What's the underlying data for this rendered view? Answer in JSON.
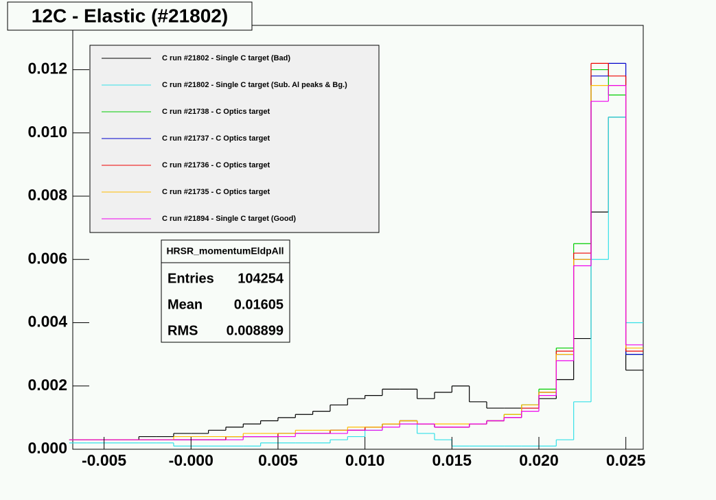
{
  "chart_data": {
    "type": "histogram",
    "title": "12C - Elastic (#21802)",
    "bins": [
      -0.007,
      -0.006,
      -0.005,
      -0.004,
      -0.003,
      -0.002,
      -0.001,
      0.0,
      0.001,
      0.002,
      0.003,
      0.004,
      0.005,
      0.006,
      0.007,
      0.008,
      0.009,
      0.01,
      0.011,
      0.012,
      0.013,
      0.014,
      0.015,
      0.016,
      0.017,
      0.018,
      0.019,
      0.02,
      0.021,
      0.022,
      0.023,
      0.024,
      0.025,
      0.026
    ],
    "series": [
      {
        "name": "C run #21802 - Single C target (Bad)",
        "color": "#000000",
        "values": [
          0.0003,
          0.0003,
          0.0003,
          0.0003,
          0.0004,
          0.0004,
          0.0005,
          0.0005,
          0.0006,
          0.0007,
          0.0008,
          0.0009,
          0.001,
          0.0011,
          0.0012,
          0.0014,
          0.0016,
          0.0017,
          0.0019,
          0.0019,
          0.0016,
          0.0018,
          0.002,
          0.0015,
          0.0013,
          0.0013,
          0.0014,
          0.0016,
          0.0022,
          0.0035,
          0.0075,
          0.0105,
          0.0025
        ]
      },
      {
        "name": "C run #21802 - Single C target (Sub. Al peaks & Bg.)",
        "color": "#33e0e8",
        "values": [
          0.0002,
          0.0002,
          0.0002,
          0.0002,
          0.0002,
          0.0002,
          0.0001,
          0.0001,
          0.0001,
          0.0001,
          0.0001,
          0.0002,
          0.0002,
          0.0002,
          0.0002,
          0.0003,
          0.0004,
          0.0006,
          0.0008,
          0.0008,
          0.0005,
          0.0003,
          0.0001,
          0.0001,
          0.0001,
          0.0001,
          0.0001,
          0.0001,
          0.0003,
          0.0015,
          0.006,
          0.0105,
          0.004
        ]
      },
      {
        "name": "C run #21738 - C Optics target",
        "color": "#00cc00",
        "values": [
          0.0003,
          0.0003,
          0.0003,
          0.0003,
          0.0003,
          0.0003,
          0.0003,
          0.0003,
          0.0003,
          0.0004,
          0.0004,
          0.0004,
          0.0005,
          0.0005,
          0.0005,
          0.0006,
          0.0006,
          0.0007,
          0.0008,
          0.0009,
          0.0008,
          0.0007,
          0.0007,
          0.0008,
          0.0009,
          0.0011,
          0.0014,
          0.0019,
          0.0032,
          0.0065,
          0.012,
          0.0112,
          0.003
        ]
      },
      {
        "name": "C run #21737 - C Optics target",
        "color": "#0000cc",
        "values": [
          0.0003,
          0.0003,
          0.0003,
          0.0003,
          0.0003,
          0.0003,
          0.0003,
          0.0003,
          0.0003,
          0.0004,
          0.0004,
          0.0004,
          0.0005,
          0.0005,
          0.0005,
          0.0006,
          0.0006,
          0.0007,
          0.0008,
          0.0009,
          0.0008,
          0.0007,
          0.0007,
          0.0008,
          0.0009,
          0.001,
          0.0013,
          0.0018,
          0.003,
          0.006,
          0.0118,
          0.0122,
          0.003
        ]
      },
      {
        "name": "C run #21736 - C Optics target",
        "color": "#ee0000",
        "values": [
          0.0003,
          0.0003,
          0.0003,
          0.0003,
          0.0003,
          0.0003,
          0.0003,
          0.0003,
          0.0003,
          0.0004,
          0.0004,
          0.0004,
          0.0005,
          0.0005,
          0.0005,
          0.0006,
          0.0006,
          0.0007,
          0.0008,
          0.0009,
          0.0008,
          0.0007,
          0.0007,
          0.0008,
          0.0009,
          0.001,
          0.0013,
          0.0018,
          0.0031,
          0.0062,
          0.0122,
          0.0118,
          0.0031
        ]
      },
      {
        "name": "C run #21735 - C Optics target",
        "color": "#ffbb00",
        "values": [
          0.0003,
          0.0003,
          0.0003,
          0.0003,
          0.0003,
          0.0003,
          0.0004,
          0.0004,
          0.0004,
          0.0004,
          0.0005,
          0.0005,
          0.0005,
          0.0006,
          0.0006,
          0.0006,
          0.0007,
          0.0007,
          0.0008,
          0.0009,
          0.0008,
          0.0008,
          0.0008,
          0.0008,
          0.0009,
          0.0011,
          0.0014,
          0.0018,
          0.003,
          0.006,
          0.0115,
          0.0115,
          0.0032
        ]
      },
      {
        "name": "C run #21894 - Single C target (Good)",
        "color": "#ee00ee",
        "values": [
          0.0003,
          0.0003,
          0.0003,
          0.0003,
          0.0003,
          0.0003,
          0.0003,
          0.0003,
          0.0003,
          0.0003,
          0.0004,
          0.0004,
          0.0004,
          0.0005,
          0.0005,
          0.0005,
          0.0006,
          0.0006,
          0.0007,
          0.0008,
          0.0008,
          0.0007,
          0.0007,
          0.0008,
          0.0009,
          0.001,
          0.0012,
          0.0017,
          0.0028,
          0.0058,
          0.011,
          0.0115,
          0.0033
        ]
      }
    ],
    "xlim": [
      -0.0068,
      0.026
    ],
    "ylim": [
      0,
      0.0134
    ],
    "xticks": [
      -0.005,
      {
        "value": 0,
        "label": "-0.000"
      },
      0.005,
      {
        "value": 0.01,
        "label": "0.010"
      },
      0.015,
      {
        "value": 0.02,
        "label": "0.020"
      },
      0.025
    ],
    "yticks": [
      {
        "value": 0,
        "label": "0.000"
      },
      0.002,
      0.004,
      0.006,
      0.008,
      {
        "value": 0.01,
        "label": "0.010"
      },
      0.012
    ],
    "stats": {
      "title": "HRSR_momentumEldpAll",
      "rows": [
        {
          "label": "Entries",
          "value": 104254
        },
        {
          "label": "Mean",
          "value": 0.01605
        },
        {
          "label": "RMS",
          "value": 0.008899
        }
      ]
    }
  }
}
